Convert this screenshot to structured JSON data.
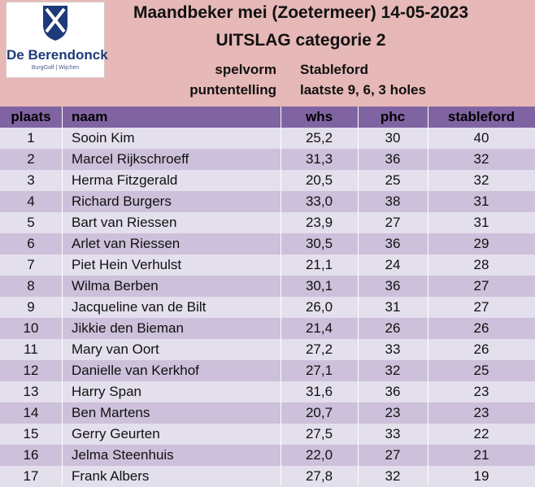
{
  "logo": {
    "name": "De Berendonck",
    "sub": "BurgGolf | Wijchen"
  },
  "title": "Maandbeker mei (Zoetermeer) 14-05-2023",
  "subtitle": "UITSLAG categorie 2",
  "meta": [
    {
      "label": "spelvorm",
      "value": "Stableford"
    },
    {
      "label": "puntentelling",
      "value": "laatste 9, 6, 3 holes"
    }
  ],
  "columns": {
    "plaats": "plaats",
    "naam": "naam",
    "whs": "whs",
    "phc": "phc",
    "stableford": "stableford"
  },
  "rows": [
    {
      "plaats": "1",
      "naam": "Sooin Kim",
      "whs": "25,2",
      "phc": "30",
      "stableford": "40"
    },
    {
      "plaats": "2",
      "naam": "Marcel Rijkschroeff",
      "whs": "31,3",
      "phc": "36",
      "stableford": "32"
    },
    {
      "plaats": "3",
      "naam": "Herma Fitzgerald",
      "whs": "20,5",
      "phc": "25",
      "stableford": "32"
    },
    {
      "plaats": "4",
      "naam": "Richard Burgers",
      "whs": "33,0",
      "phc": "38",
      "stableford": "31"
    },
    {
      "plaats": "5",
      "naam": "Bart van Riessen",
      "whs": "23,9",
      "phc": "27",
      "stableford": "31"
    },
    {
      "plaats": "6",
      "naam": "Arlet van Riessen",
      "whs": "30,5",
      "phc": "36",
      "stableford": "29"
    },
    {
      "plaats": "7",
      "naam": "Piet Hein Verhulst",
      "whs": "21,1",
      "phc": "24",
      "stableford": "28"
    },
    {
      "plaats": "8",
      "naam": "Wilma Berben",
      "whs": "30,1",
      "phc": "36",
      "stableford": "27"
    },
    {
      "plaats": "9",
      "naam": "Jacqueline van de Bilt",
      "whs": "26,0",
      "phc": "31",
      "stableford": "27"
    },
    {
      "plaats": "10",
      "naam": "Jikkie den Bieman",
      "whs": "21,4",
      "phc": "26",
      "stableford": "26"
    },
    {
      "plaats": "11",
      "naam": "Mary van Oort",
      "whs": "27,2",
      "phc": "33",
      "stableford": "26"
    },
    {
      "plaats": "12",
      "naam": "Danielle van Kerkhof",
      "whs": "27,1",
      "phc": "32",
      "stableford": "25"
    },
    {
      "plaats": "13",
      "naam": "Harry Span",
      "whs": "31,6",
      "phc": "36",
      "stableford": "23"
    },
    {
      "plaats": "14",
      "naam": "Ben Martens",
      "whs": "20,7",
      "phc": "23",
      "stableford": "23"
    },
    {
      "plaats": "15",
      "naam": "Gerry Geurten",
      "whs": "27,5",
      "phc": "33",
      "stableford": "22"
    },
    {
      "plaats": "16",
      "naam": "Jelma Steenhuis",
      "whs": "22,0",
      "phc": "27",
      "stableford": "21"
    },
    {
      "plaats": "17",
      "naam": "Frank Albers",
      "whs": "27,8",
      "phc": "32",
      "stableford": "19"
    }
  ],
  "colors": {
    "header_bg": "#e6b8b7",
    "table_header": "#8064a2",
    "row_light": "#e4dfec",
    "row_dark": "#ccc0da",
    "logo_blue": "#1f3a7a"
  }
}
